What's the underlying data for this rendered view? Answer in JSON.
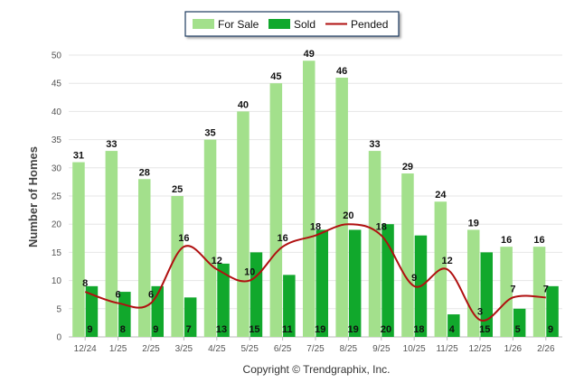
{
  "chart_data": {
    "type": "bar",
    "categories": [
      "12/24",
      "1/25",
      "2/25",
      "3/25",
      "4/25",
      "5/25",
      "6/25",
      "7/25",
      "8/25",
      "9/25",
      "10/25",
      "11/25",
      "12/25",
      "1/26",
      "2/26"
    ],
    "series": [
      {
        "name": "For Sale",
        "kind": "bar",
        "color": "#a3e08c",
        "values": [
          31,
          33,
          28,
          25,
          35,
          40,
          45,
          49,
          46,
          33,
          29,
          24,
          19,
          16,
          16
        ]
      },
      {
        "name": "Sold",
        "kind": "bar",
        "color": "#11a82c",
        "values": [
          9,
          8,
          9,
          7,
          13,
          15,
          11,
          19,
          19,
          20,
          18,
          4,
          15,
          5,
          9
        ]
      },
      {
        "name": "Pended",
        "kind": "line",
        "color": "#b01010",
        "values": [
          8,
          6,
          6,
          16,
          12,
          10,
          16,
          18,
          20,
          18,
          9,
          12,
          3,
          7,
          7
        ]
      }
    ],
    "ylabel": "Number of Homes",
    "ylim": [
      0,
      50
    ],
    "yticks": [
      0,
      5,
      10,
      15,
      20,
      25,
      30,
      35,
      40,
      45,
      50
    ],
    "grid": true,
    "legend_position": "top-center",
    "credit": "Copyright © Trendgraphix, Inc."
  }
}
